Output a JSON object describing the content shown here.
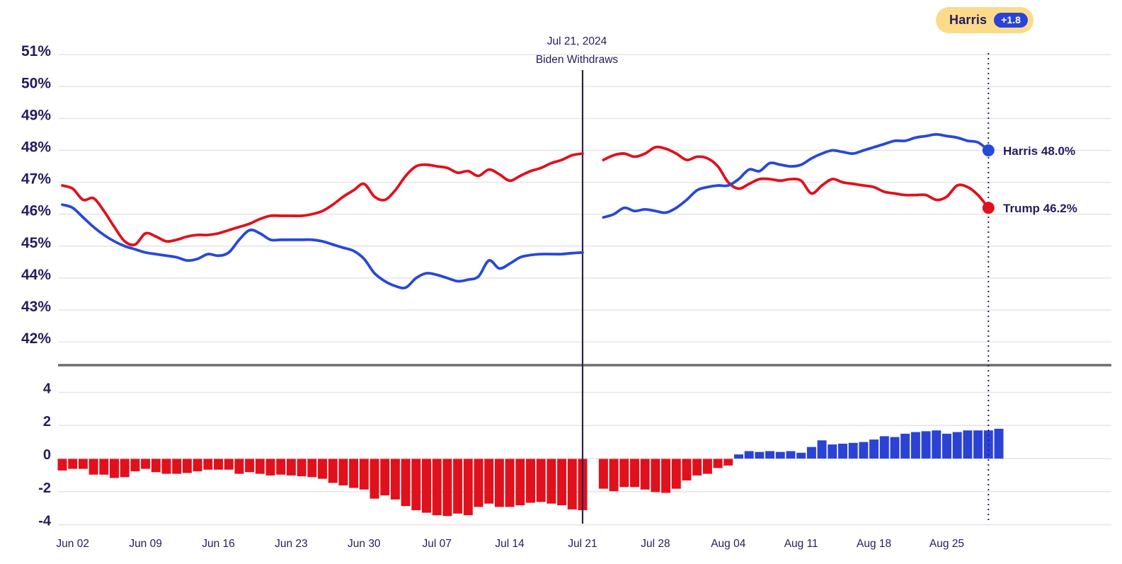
{
  "badge": {
    "leader": "Harris",
    "margin": "+1.8"
  },
  "annotation": {
    "date": "Jul 21, 2024",
    "event": "Biden Withdraws"
  },
  "end_labels": {
    "harris": "Harris 48.0%",
    "trump": "Trump 46.2%"
  },
  "colors": {
    "navy_text": "#241c5e",
    "red": "#e0111c",
    "blue_line": "#2749d8",
    "blue_bar": "#2b43d4",
    "badge_bg": "#fbdb8a",
    "grid": "#e3e3e3",
    "separator": "#6e6e6e",
    "event_line": "#2a2351"
  },
  "chart_data": [
    {
      "type": "line",
      "x_start_date": "Jun 01",
      "x_tick_day_indices": [
        1,
        8,
        15,
        22,
        29,
        36,
        43,
        50,
        57,
        64,
        71,
        78,
        85
      ],
      "x_tick_labels": [
        "Jun 02",
        "Jun 09",
        "Jun 16",
        "Jun 23",
        "Jun 30",
        "Jul 07",
        "Jul 14",
        "Jul 21",
        "Jul 28",
        "Aug 04",
        "Aug 11",
        "Aug 18",
        "Aug 25"
      ],
      "y_ticks": [
        51,
        50,
        49,
        48,
        47,
        46,
        45,
        44,
        43,
        42
      ],
      "y_tick_labels": [
        "51%",
        "50%",
        "49%",
        "48%",
        "47%",
        "46%",
        "45%",
        "44%",
        "43%",
        "42%"
      ],
      "ylim": [
        41.5,
        51.5
      ],
      "event_line": {
        "day_index": 50,
        "date": "Jul 21, 2024",
        "label": "Biden Withdraws"
      },
      "end_line_day_index": 89,
      "series": [
        {
          "name": "Trump",
          "color": "#e0111c",
          "end_value": 46.2,
          "end_label": "Trump 46.2%",
          "values": [
            46.9,
            46.8,
            46.45,
            46.5,
            46.1,
            45.6,
            45.15,
            45.05,
            45.4,
            45.3,
            45.15,
            45.2,
            45.3,
            45.35,
            45.35,
            45.4,
            45.5,
            45.6,
            45.7,
            45.85,
            45.95,
            45.95,
            45.95,
            45.95,
            46.0,
            46.1,
            46.3,
            46.55,
            46.75,
            46.95,
            46.55,
            46.45,
            46.75,
            47.2,
            47.5,
            47.55,
            47.5,
            47.45,
            47.3,
            47.35,
            47.2,
            47.4,
            47.25,
            47.05,
            47.2,
            47.35,
            47.45,
            47.6,
            47.7,
            47.85,
            47.9,
            null,
            47.7,
            47.85,
            47.9,
            47.8,
            47.9,
            48.1,
            48.05,
            47.9,
            47.7,
            47.8,
            47.75,
            47.5,
            47.0,
            46.8,
            46.95,
            47.1,
            47.1,
            47.05,
            47.1,
            47.05,
            46.65,
            46.9,
            47.1,
            47.0,
            46.95,
            46.9,
            46.85,
            46.7,
            46.65,
            46.6,
            46.6,
            46.6,
            46.45,
            46.55,
            46.9,
            46.85,
            46.6,
            46.2
          ]
        },
        {
          "name": "Biden / Harris",
          "color": "#2749d8",
          "end_value": 48.0,
          "end_label": "Harris 48.0%",
          "values": [
            46.3,
            46.2,
            45.9,
            45.6,
            45.35,
            45.15,
            45.0,
            44.9,
            44.8,
            44.75,
            44.7,
            44.65,
            44.55,
            44.6,
            44.75,
            44.7,
            44.8,
            45.2,
            45.5,
            45.4,
            45.2,
            45.2,
            45.2,
            45.2,
            45.2,
            45.15,
            45.05,
            44.95,
            44.85,
            44.6,
            44.15,
            43.9,
            43.75,
            43.7,
            44.0,
            44.15,
            44.1,
            44.0,
            43.9,
            43.95,
            44.05,
            44.55,
            44.3,
            44.45,
            44.65,
            44.72,
            44.75,
            44.75,
            44.75,
            44.78,
            44.8,
            null,
            45.9,
            46.0,
            46.2,
            46.1,
            46.15,
            46.1,
            46.05,
            46.2,
            46.45,
            46.75,
            46.85,
            46.9,
            46.9,
            47.1,
            47.4,
            47.35,
            47.6,
            47.55,
            47.5,
            47.55,
            47.75,
            47.9,
            48.0,
            47.95,
            47.9,
            48.0,
            48.1,
            48.2,
            48.3,
            48.3,
            48.4,
            48.45,
            48.5,
            48.45,
            48.4,
            48.3,
            48.25,
            48.0
          ]
        }
      ]
    },
    {
      "type": "bar",
      "y_ticks": [
        4,
        2,
        0,
        -2,
        -4
      ],
      "y_tick_labels": [
        "4",
        "2",
        "0",
        "-2",
        "-4"
      ],
      "ylim": [
        -4.5,
        4.5
      ],
      "positive_color": "#2b43d4",
      "negative_color": "#e0111c",
      "values": [
        -0.7,
        -0.6,
        -0.6,
        -0.95,
        -0.95,
        -1.15,
        -1.1,
        -0.75,
        -0.6,
        -0.8,
        -0.9,
        -0.9,
        -0.85,
        -0.75,
        -0.65,
        -0.65,
        -0.65,
        -0.9,
        -0.8,
        -0.9,
        -1.0,
        -0.95,
        -1.0,
        -1.05,
        -1.1,
        -1.2,
        -1.45,
        -1.6,
        -1.75,
        -1.85,
        -2.4,
        -2.2,
        -2.45,
        -2.85,
        -3.1,
        -3.25,
        -3.4,
        -3.45,
        -3.3,
        -3.4,
        -2.9,
        -2.7,
        -2.9,
        -2.9,
        -2.8,
        -2.65,
        -2.6,
        -2.7,
        -2.8,
        -3.05,
        -3.1,
        null,
        -1.8,
        -1.95,
        -1.7,
        -1.7,
        -1.85,
        -2.0,
        -2.05,
        -1.8,
        -1.3,
        -1.0,
        -0.9,
        -0.55,
        -0.4,
        0.25,
        0.45,
        0.4,
        0.45,
        0.4,
        0.45,
        0.35,
        0.7,
        1.1,
        0.85,
        0.9,
        0.95,
        1.0,
        1.15,
        1.35,
        1.3,
        1.5,
        1.6,
        1.65,
        1.7,
        1.5,
        1.6,
        1.7,
        1.7,
        1.7,
        1.8
      ]
    }
  ]
}
